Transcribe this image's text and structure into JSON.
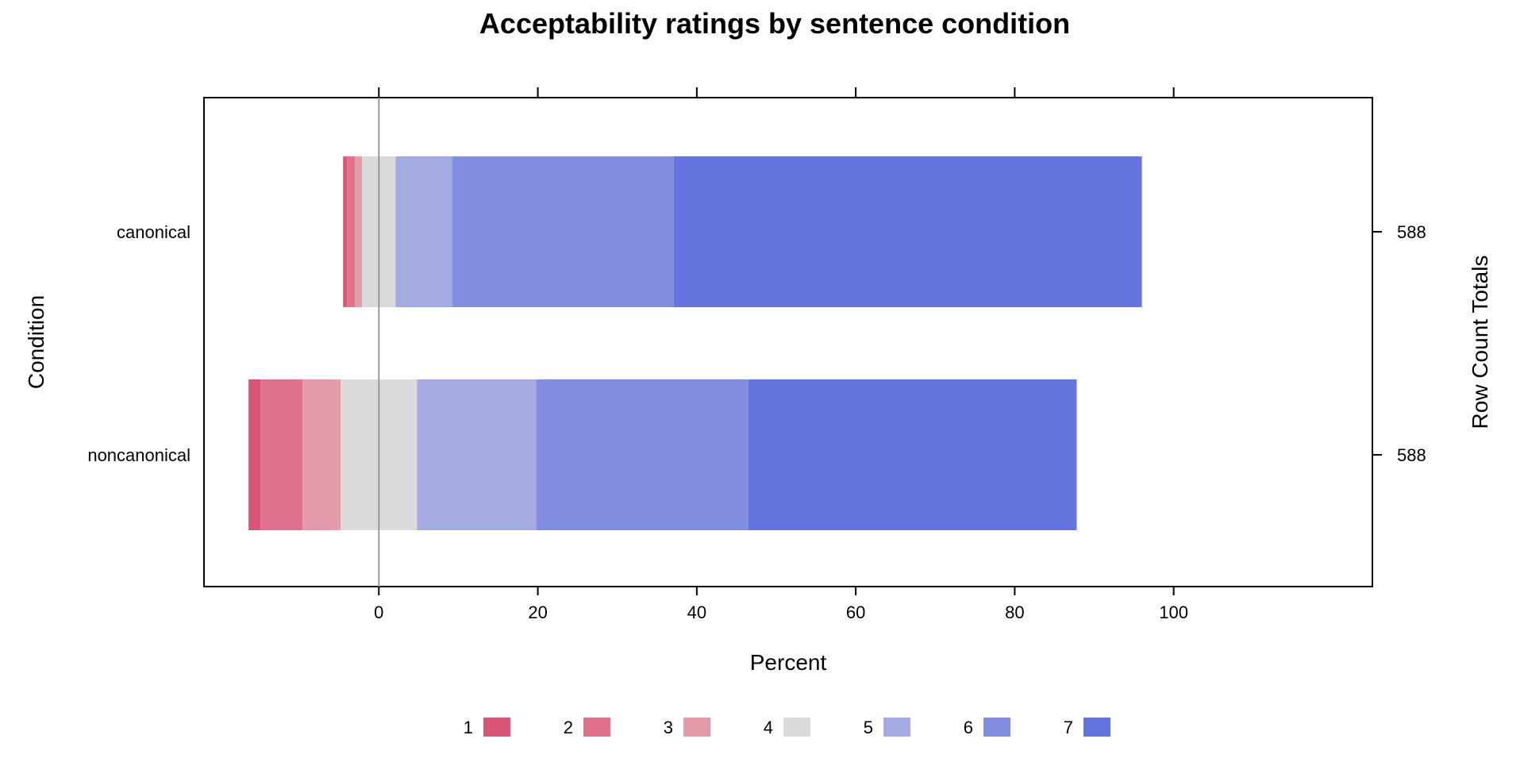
{
  "chart_data": {
    "type": "bar",
    "title": "Acceptability ratings by sentence condition",
    "xlabel": "Percent",
    "ylabel": "Condition",
    "y2label": "Row Count Totals",
    "xlim": [
      -22,
      125
    ],
    "xticks": [
      0,
      20,
      40,
      60,
      80,
      100
    ],
    "xtick_labels": [
      "0",
      "20",
      "40",
      "60",
      "80",
      "100"
    ],
    "categories": [
      "canonical",
      "noncanonical"
    ],
    "row_totals": [
      "588",
      "588"
    ],
    "legend_position": "bottom",
    "series": [
      {
        "name": "1",
        "color": "#D9567A",
        "values": [
          0.5,
          1.5
        ]
      },
      {
        "name": "2",
        "color": "#E0728E",
        "values": [
          1.0,
          5.3
        ]
      },
      {
        "name": "3",
        "color": "#E39BAA",
        "values": [
          0.9,
          4.8
        ]
      },
      {
        "name": "4",
        "color": "#DBDBDB",
        "values": [
          4.2,
          9.6
        ]
      },
      {
        "name": "5",
        "color": "#A4ABE0",
        "values": [
          7.1,
          15.0
        ]
      },
      {
        "name": "6",
        "color": "#818DDF",
        "values": [
          27.9,
          26.7
        ]
      },
      {
        "name": "7",
        "color": "#6475DF",
        "values": [
          58.9,
          41.3
        ]
      }
    ]
  }
}
